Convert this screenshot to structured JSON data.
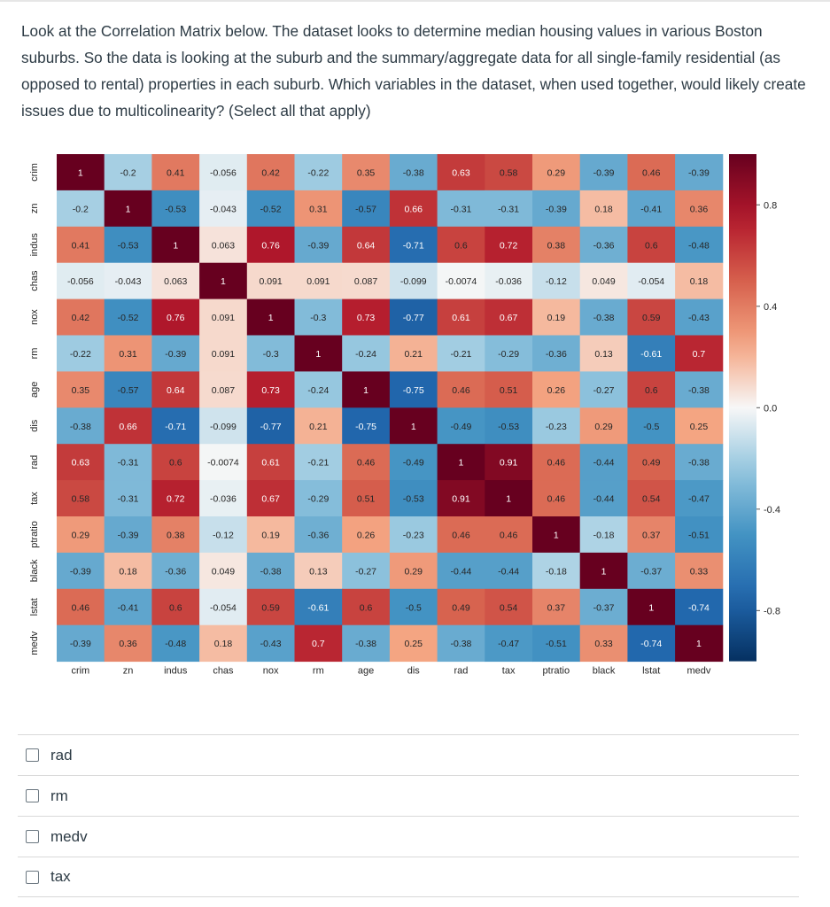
{
  "question": {
    "text": "Look at the Correlation Matrix below. The dataset looks to determine median housing values in various Boston suburbs. So the data is looking at the suburb and the summary/aggregate data for all single-family residential (as opposed to rental) properties in each suburb. Which variables in the dataset, when used together, would likely create issues due to multicolinearity? (Select all that apply)"
  },
  "chart_data": {
    "type": "heatmap",
    "title": "",
    "variables": [
      "crim",
      "zn",
      "indus",
      "chas",
      "nox",
      "rm",
      "age",
      "dis",
      "rad",
      "tax",
      "ptratio",
      "black",
      "lstat",
      "medv"
    ],
    "y_tick_labels": [
      "crim",
      "zn",
      "indus",
      "chas",
      "nox",
      "rm",
      "age",
      "dis",
      "rad",
      "tax",
      "ptratio",
      "black",
      "lstat",
      "medv"
    ],
    "x_tick_labels": [
      "crim",
      "zn",
      "indus",
      "chas",
      "nox",
      "rm",
      "age",
      "dis",
      "rad",
      "tax",
      "ptratio",
      "black",
      "lstat",
      "medv"
    ],
    "matrix": [
      [
        1,
        -0.2,
        0.41,
        -0.056,
        0.42,
        -0.22,
        0.35,
        -0.38,
        0.63,
        0.58,
        0.29,
        -0.39,
        0.46,
        -0.39
      ],
      [
        -0.2,
        1,
        -0.53,
        -0.043,
        -0.52,
        0.31,
        -0.57,
        0.66,
        -0.31,
        -0.31,
        -0.39,
        0.18,
        -0.41,
        0.36
      ],
      [
        0.41,
        -0.53,
        1,
        0.063,
        0.76,
        -0.39,
        0.64,
        -0.71,
        0.6,
        0.72,
        0.38,
        -0.36,
        0.6,
        -0.48
      ],
      [
        -0.056,
        -0.043,
        0.063,
        1,
        0.091,
        0.091,
        0.087,
        -0.099,
        -0.0074,
        -0.036,
        -0.12,
        0.049,
        -0.054,
        0.18
      ],
      [
        0.42,
        -0.52,
        0.76,
        0.091,
        1,
        -0.3,
        0.73,
        -0.77,
        0.61,
        0.67,
        0.19,
        -0.38,
        0.59,
        -0.43
      ],
      [
        -0.22,
        0.31,
        -0.39,
        0.091,
        -0.3,
        1,
        -0.24,
        0.21,
        -0.21,
        -0.29,
        -0.36,
        0.13,
        -0.61,
        0.7
      ],
      [
        0.35,
        -0.57,
        0.64,
        0.087,
        0.73,
        -0.24,
        1,
        -0.75,
        0.46,
        0.51,
        0.26,
        -0.27,
        0.6,
        -0.38
      ],
      [
        -0.38,
        0.66,
        -0.71,
        -0.099,
        -0.77,
        0.21,
        -0.75,
        1,
        -0.49,
        -0.53,
        -0.23,
        0.29,
        -0.5,
        0.25
      ],
      [
        0.63,
        -0.31,
        0.6,
        -0.0074,
        0.61,
        -0.21,
        0.46,
        -0.49,
        1,
        0.91,
        0.46,
        -0.44,
        0.49,
        -0.38
      ],
      [
        0.58,
        -0.31,
        0.72,
        -0.036,
        0.67,
        -0.29,
        0.51,
        -0.53,
        0.91,
        1,
        0.46,
        -0.44,
        0.54,
        -0.47
      ],
      [
        0.29,
        -0.39,
        0.38,
        -0.12,
        0.19,
        -0.36,
        0.26,
        -0.23,
        0.46,
        0.46,
        1,
        -0.18,
        0.37,
        -0.51
      ],
      [
        -0.39,
        0.18,
        -0.36,
        0.049,
        -0.38,
        0.13,
        -0.27,
        0.29,
        -0.44,
        -0.44,
        -0.18,
        1,
        -0.37,
        0.33
      ],
      [
        0.46,
        -0.41,
        0.6,
        -0.054,
        0.59,
        -0.61,
        0.6,
        -0.5,
        0.49,
        0.54,
        0.37,
        -0.37,
        1,
        -0.74
      ],
      [
        -0.39,
        0.36,
        -0.48,
        0.18,
        -0.43,
        0.7,
        -0.38,
        0.25,
        -0.38,
        -0.47,
        -0.51,
        0.33,
        -0.74,
        1
      ]
    ],
    "colorbar": {
      "range": [
        -1,
        1
      ],
      "ticks": [
        "0.8",
        "0.4",
        "0.0",
        "-0.4",
        "-0.8"
      ],
      "tick_values": [
        0.8,
        0.4,
        0.0,
        -0.4,
        -0.8
      ]
    },
    "colormap": "RdBu_r",
    "colors": {
      "high": "#67001f",
      "mid": "#f7f7f7",
      "low": "#053061"
    }
  },
  "answers": [
    {
      "label": "rad"
    },
    {
      "label": "rm"
    },
    {
      "label": "medv"
    },
    {
      "label": "tax"
    }
  ]
}
